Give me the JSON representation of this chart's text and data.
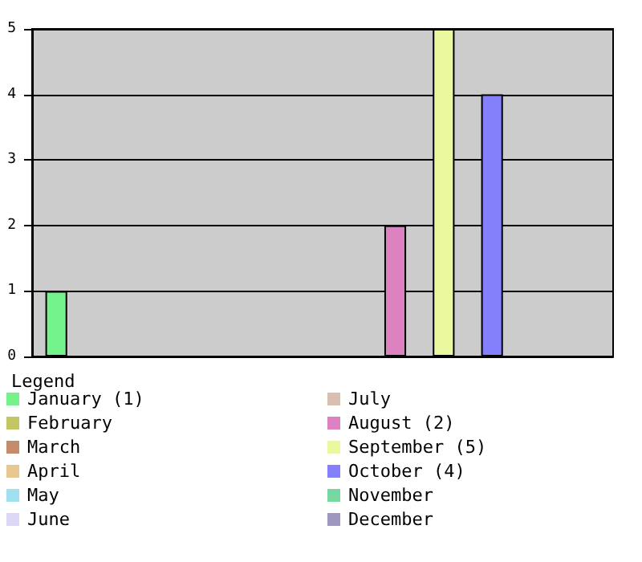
{
  "chart_data": {
    "type": "bar",
    "legend_title": "Legend",
    "categories": [
      null,
      null,
      null,
      null,
      null,
      null,
      null,
      null,
      null,
      null,
      null,
      null
    ],
    "series": [
      {
        "name": "January (1)",
        "color": "#74f28c",
        "values": [
          1,
          null,
          null,
          null,
          null,
          null,
          null,
          null,
          null,
          null,
          null,
          null
        ]
      },
      {
        "name": "February",
        "color": "#c4c466",
        "values": [
          null,
          0,
          null,
          null,
          null,
          null,
          null,
          null,
          null,
          null,
          null,
          null
        ]
      },
      {
        "name": "March",
        "color": "#c48c6a",
        "values": [
          null,
          null,
          0,
          null,
          null,
          null,
          null,
          null,
          null,
          null,
          null,
          null
        ]
      },
      {
        "name": "April",
        "color": "#e8c890",
        "values": [
          null,
          null,
          null,
          0,
          null,
          null,
          null,
          null,
          null,
          null,
          null,
          null
        ]
      },
      {
        "name": "May",
        "color": "#a0e0f0",
        "values": [
          null,
          null,
          null,
          null,
          0,
          null,
          null,
          null,
          null,
          null,
          null,
          null
        ]
      },
      {
        "name": "June",
        "color": "#ddd6f4",
        "values": [
          null,
          null,
          null,
          null,
          null,
          0,
          null,
          null,
          null,
          null,
          null,
          null
        ]
      },
      {
        "name": "July",
        "color": "#d8c0b0",
        "values": [
          null,
          null,
          null,
          null,
          null,
          null,
          0,
          null,
          null,
          null,
          null,
          null
        ]
      },
      {
        "name": "August (2)",
        "color": "#dd82c0",
        "values": [
          null,
          null,
          null,
          null,
          null,
          null,
          null,
          2,
          null,
          null,
          null,
          null
        ]
      },
      {
        "name": "September (5)",
        "color": "#ecf8a0",
        "values": [
          null,
          null,
          null,
          null,
          null,
          null,
          null,
          null,
          5,
          null,
          null,
          null
        ]
      },
      {
        "name": "October (4)",
        "color": "#8480fc",
        "values": [
          null,
          null,
          null,
          null,
          null,
          null,
          null,
          null,
          null,
          4,
          null,
          null
        ]
      },
      {
        "name": "November",
        "color": "#74d8a0",
        "values": [
          null,
          null,
          null,
          null,
          null,
          null,
          null,
          null,
          null,
          null,
          0,
          null
        ]
      },
      {
        "name": "December",
        "color": "#9c98c0",
        "values": [
          null,
          null,
          null,
          null,
          null,
          null,
          null,
          null,
          null,
          null,
          null,
          0
        ]
      }
    ],
    "ylim": [
      0,
      5
    ],
    "yticks": [
      0,
      1,
      2,
      3,
      4,
      5
    ],
    "grid": "y",
    "legend": "bottom",
    "tick_labels": "y"
  }
}
